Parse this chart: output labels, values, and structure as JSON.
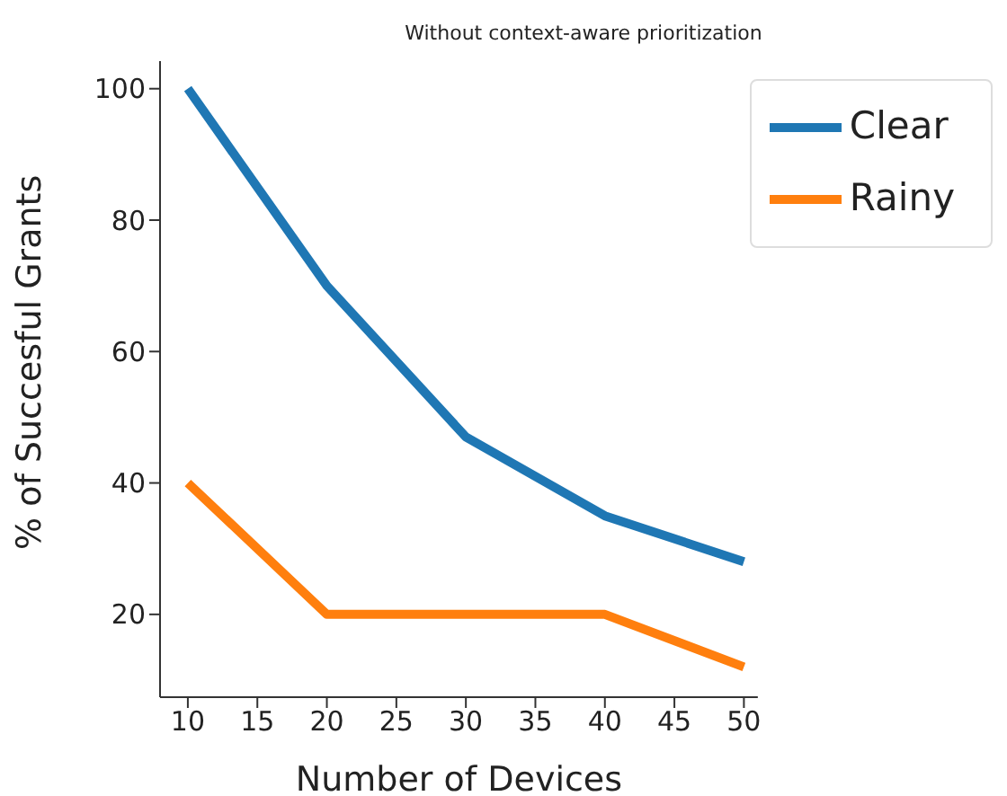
{
  "chart_data": {
    "type": "line",
    "title": "Without context-aware prioritization",
    "xlabel": "Number of Devices",
    "ylabel": "% of Succesful Grants",
    "x": [
      10,
      20,
      30,
      40,
      50
    ],
    "series": [
      {
        "name": "Clear",
        "color": "#1f77b4",
        "values": [
          100,
          70,
          47,
          35,
          28
        ]
      },
      {
        "name": "Rainy",
        "color": "#ff7f0e",
        "values": [
          40,
          20,
          20,
          20,
          12
        ]
      }
    ],
    "xlim": [
      8,
      51
    ],
    "xticks": [
      10,
      15,
      20,
      25,
      30,
      35,
      40,
      45,
      50
    ],
    "ylim": [
      7.4,
      104.2
    ],
    "yticks": [
      20,
      40,
      60,
      80,
      100
    ],
    "grid": false,
    "legend": "top right",
    "marker": "none",
    "line_style": "solid"
  }
}
